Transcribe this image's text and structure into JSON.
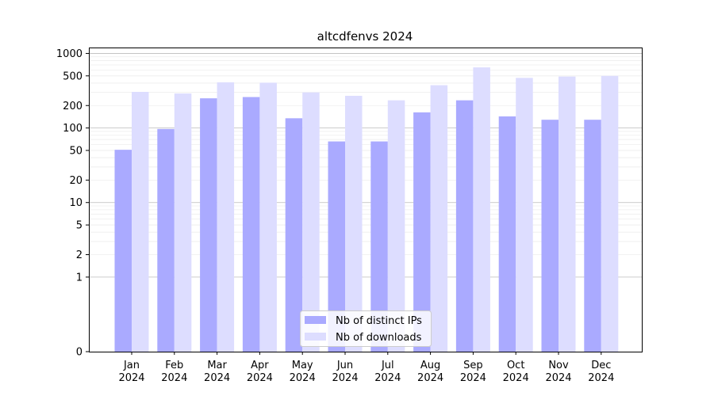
{
  "chart_data": {
    "type": "bar",
    "title": "altcdfenvs 2024",
    "xlabel": "",
    "ylabel": "",
    "y_scale": "symlog",
    "ylim": [
      0,
      1200
    ],
    "y_ticks": [
      0,
      1,
      2,
      5,
      10,
      20,
      50,
      100,
      200,
      500,
      1000
    ],
    "y_tick_labels": [
      "0",
      "1",
      "2",
      "5",
      "10",
      "20",
      "50",
      "100",
      "200",
      "500",
      "1000"
    ],
    "grid": true,
    "legend_position": "bottom-center",
    "categories": [
      "Jan\n2024",
      "Feb\n2024",
      "Mar\n2024",
      "Apr\n2024",
      "May\n2024",
      "Jun\n2024",
      "Jul\n2024",
      "Aug\n2024",
      "Sep\n2024",
      "Oct\n2024",
      "Nov\n2024",
      "Dec\n2024"
    ],
    "series": [
      {
        "name": "Nb of distinct IPs",
        "color": "#aaaaff",
        "values": [
          51,
          97,
          250,
          260,
          135,
          66,
          66,
          162,
          235,
          143,
          129,
          129
        ]
      },
      {
        "name": "Nb of downloads",
        "color": "#ddddff",
        "values": [
          305,
          290,
          410,
          405,
          300,
          270,
          235,
          375,
          650,
          470,
          490,
          500
        ]
      }
    ]
  }
}
